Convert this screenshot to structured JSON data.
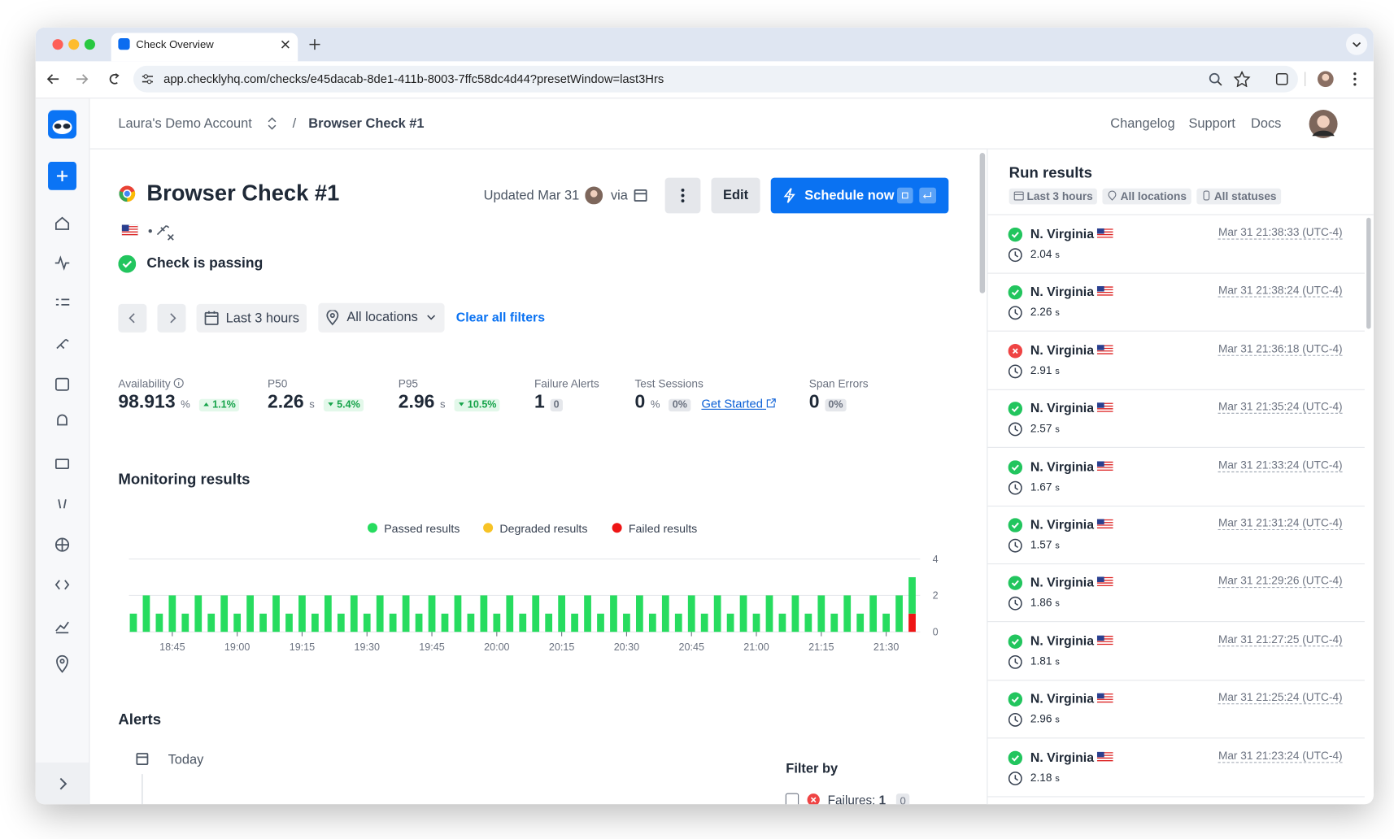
{
  "browser": {
    "tab_title": "Check Overview",
    "url": "app.checklyhq.com/checks/e45dacab-8de1-411b-8003-7ffc58dc4d44?presetWindow=last3Hrs"
  },
  "header": {
    "account": "Laura's Demo Account",
    "separator": "/",
    "check": "Browser Check #1",
    "links": [
      "Changelog",
      "Support",
      "Docs"
    ]
  },
  "check": {
    "title": "Browser Check #1",
    "updated": "Updated Mar 31",
    "via": "via",
    "edit": "Edit",
    "schedule": "Schedule now",
    "status": "Check is passing"
  },
  "filters": {
    "range": "Last 3 hours",
    "locations": "All locations",
    "clear": "Clear all filters"
  },
  "metrics": [
    {
      "label": "Availability",
      "value": "98.913",
      "unit": "%",
      "delta": "1.1%",
      "trend": "up"
    },
    {
      "label": "P50",
      "value": "2.26",
      "unit": "s",
      "delta": "5.4%",
      "trend": "down"
    },
    {
      "label": "P95",
      "value": "2.96",
      "unit": "s",
      "delta": "10.5%",
      "trend": "down"
    },
    {
      "label": "Failure Alerts",
      "value": "1",
      "badge": "0"
    },
    {
      "label": "Test Sessions",
      "value": "0",
      "unit": "%",
      "badge": "0%",
      "link": "Get Started"
    },
    {
      "label": "Span Errors",
      "value": "0",
      "badge": "0%"
    }
  ],
  "chart_data": {
    "type": "bar",
    "stacked": true,
    "title": "Monitoring results",
    "categories": [
      null,
      null,
      null,
      "18:45",
      null,
      null,
      null,
      null,
      "19:00",
      null,
      null,
      null,
      null,
      "19:15",
      null,
      null,
      null,
      null,
      "19:30",
      null,
      null,
      null,
      null,
      "19:45",
      null,
      null,
      null,
      null,
      "20:00",
      null,
      null,
      null,
      null,
      "20:15",
      null,
      null,
      null,
      null,
      "20:30",
      null,
      null,
      null,
      null,
      "20:45",
      null,
      null,
      null,
      null,
      "21:00",
      null,
      null,
      null,
      null,
      "21:15",
      null,
      null,
      null,
      null,
      "21:30",
      null,
      null
    ],
    "series": [
      {
        "name": "Passed results",
        "color": "#27dc5f",
        "values": [
          1,
          2,
          1,
          2,
          1,
          2,
          1,
          2,
          1,
          2,
          1,
          2,
          1,
          2,
          1,
          2,
          1,
          2,
          1,
          2,
          1,
          2,
          1,
          2,
          1,
          2,
          1,
          2,
          1,
          2,
          1,
          2,
          1,
          2,
          1,
          2,
          1,
          2,
          1,
          2,
          1,
          2,
          1,
          2,
          1,
          2,
          1,
          2,
          1,
          2,
          1,
          2,
          1,
          2,
          1,
          2,
          1,
          2,
          1,
          2,
          2
        ]
      },
      {
        "name": "Degraded results",
        "color": "#f7c325",
        "values": [
          0,
          0,
          0,
          0,
          0,
          0,
          0,
          0,
          0,
          0,
          0,
          0,
          0,
          0,
          0,
          0,
          0,
          0,
          0,
          0,
          0,
          0,
          0,
          0,
          0,
          0,
          0,
          0,
          0,
          0,
          0,
          0,
          0,
          0,
          0,
          0,
          0,
          0,
          0,
          0,
          0,
          0,
          0,
          0,
          0,
          0,
          0,
          0,
          0,
          0,
          0,
          0,
          0,
          0,
          0,
          0,
          0,
          0,
          0,
          0,
          0
        ]
      },
      {
        "name": "Failed results",
        "color": "#ee1515",
        "values": [
          0,
          0,
          0,
          0,
          0,
          0,
          0,
          0,
          0,
          0,
          0,
          0,
          0,
          0,
          0,
          0,
          0,
          0,
          0,
          0,
          0,
          0,
          0,
          0,
          0,
          0,
          0,
          0,
          0,
          0,
          0,
          0,
          0,
          0,
          0,
          0,
          0,
          0,
          0,
          0,
          0,
          0,
          0,
          0,
          0,
          0,
          0,
          0,
          0,
          0,
          0,
          0,
          0,
          0,
          0,
          0,
          0,
          0,
          0,
          0,
          1
        ]
      }
    ],
    "ylim": [
      0,
      4
    ],
    "yticks": [
      0,
      2,
      4
    ],
    "grid": true
  },
  "alerts": {
    "title": "Alerts",
    "day": "Today",
    "filter_title": "Filter by",
    "failures_label": "Failures:",
    "failures_count": "1",
    "failures_badge": "0"
  },
  "runs": {
    "title": "Run results",
    "chips": [
      "Last 3 hours",
      "All locations",
      "All statuses"
    ],
    "unit": "s",
    "items": [
      {
        "location": "N. Virginia",
        "time": "Mar 31 21:38:33 (UTC-4)",
        "duration": "2.04",
        "status": "passed"
      },
      {
        "location": "N. Virginia",
        "time": "Mar 31 21:38:24 (UTC-4)",
        "duration": "2.26",
        "status": "passed"
      },
      {
        "location": "N. Virginia",
        "time": "Mar 31 21:36:18 (UTC-4)",
        "duration": "2.91",
        "status": "failed"
      },
      {
        "location": "N. Virginia",
        "time": "Mar 31 21:35:24 (UTC-4)",
        "duration": "2.57",
        "status": "passed"
      },
      {
        "location": "N. Virginia",
        "time": "Mar 31 21:33:24 (UTC-4)",
        "duration": "1.67",
        "status": "passed"
      },
      {
        "location": "N. Virginia",
        "time": "Mar 31 21:31:24 (UTC-4)",
        "duration": "1.57",
        "status": "passed"
      },
      {
        "location": "N. Virginia",
        "time": "Mar 31 21:29:26 (UTC-4)",
        "duration": "1.86",
        "status": "passed"
      },
      {
        "location": "N. Virginia",
        "time": "Mar 31 21:27:25 (UTC-4)",
        "duration": "1.81",
        "status": "passed"
      },
      {
        "location": "N. Virginia",
        "time": "Mar 31 21:25:24 (UTC-4)",
        "duration": "2.96",
        "status": "passed"
      },
      {
        "location": "N. Virginia",
        "time": "Mar 31 21:23:24 (UTC-4)",
        "duration": "2.18",
        "status": "passed"
      }
    ]
  }
}
